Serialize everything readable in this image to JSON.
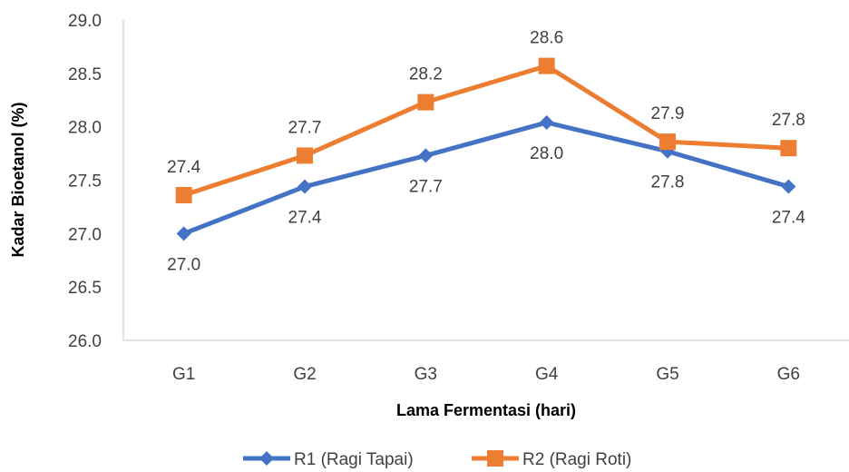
{
  "chart_data": {
    "type": "line",
    "title": "",
    "xlabel": "Lama Fermentasi (hari)",
    "ylabel": "Kadar Bioetanol (%)",
    "categories": [
      "G1",
      "G2",
      "G3",
      "G4",
      "G5",
      "G6"
    ],
    "ylim": [
      26.0,
      29.0
    ],
    "yticks": [
      "26.0",
      "26.5",
      "27.0",
      "27.5",
      "28.0",
      "28.5",
      "29.0"
    ],
    "grid": false,
    "legend_position": "bottom",
    "series": [
      {
        "name": "R1 (Ragi Tapai)",
        "color": "#4472C4",
        "marker": "diamond",
        "values": [
          27.0,
          27.44,
          27.73,
          28.04,
          27.77,
          27.44
        ],
        "labels": [
          "27.0",
          "27.4",
          "27.7",
          "28.0",
          "27.8",
          "27.4"
        ],
        "label_position": "below"
      },
      {
        "name": "R2 (Ragi Roti)",
        "color": "#ED7D31",
        "marker": "square",
        "values": [
          27.36,
          27.73,
          28.23,
          28.57,
          27.86,
          27.8
        ],
        "labels": [
          "27.4",
          "27.7",
          "28.2",
          "28.6",
          "27.9",
          "27.8"
        ],
        "label_position": "above"
      }
    ]
  }
}
